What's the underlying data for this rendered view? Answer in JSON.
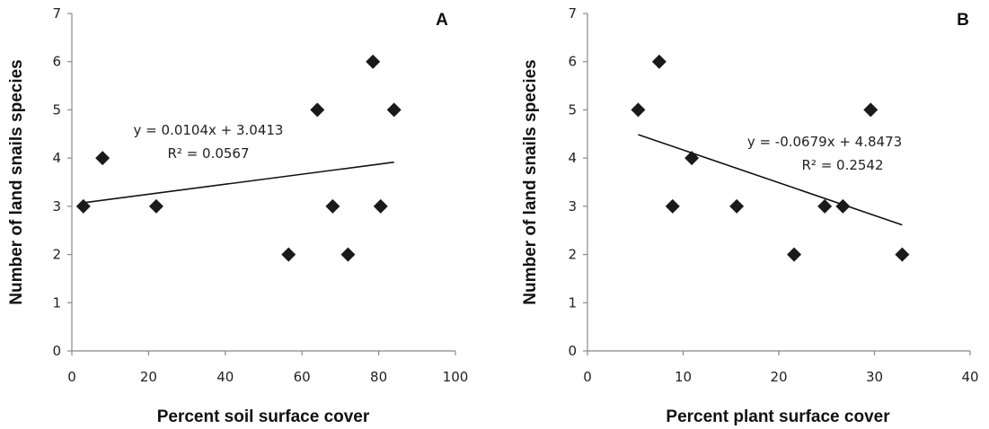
{
  "chart_data": [
    {
      "type": "scatter",
      "panel_label": "A",
      "xlabel": "Percent soil surface cover",
      "ylabel": "Number of land snails species",
      "xlim": [
        0,
        100
      ],
      "ylim": [
        0,
        7
      ],
      "xticks": [
        "0",
        "20",
        "40",
        "60",
        "80",
        "100"
      ],
      "yticks": [
        "0",
        "1",
        "2",
        "3",
        "4",
        "5",
        "6",
        "7"
      ],
      "marker_color": "#1a1a1a",
      "points": [
        {
          "x": 3,
          "y": 3
        },
        {
          "x": 8,
          "y": 4
        },
        {
          "x": 22,
          "y": 3
        },
        {
          "x": 56.5,
          "y": 2
        },
        {
          "x": 64,
          "y": 5
        },
        {
          "x": 68,
          "y": 3
        },
        {
          "x": 72,
          "y": 2
        },
        {
          "x": 78.5,
          "y": 6
        },
        {
          "x": 80.5,
          "y": 3
        },
        {
          "x": 84,
          "y": 5
        }
      ],
      "trendline": {
        "equation": "y = 0.0104x + 3.0413",
        "r2_text": "R² = 0.0567",
        "slope": 0.0104,
        "intercept": 3.0413,
        "x_range": [
          3,
          84
        ]
      }
    },
    {
      "type": "scatter",
      "panel_label": "B",
      "xlabel": "Percent plant surface cover",
      "ylabel": "Number of land snails species",
      "xlim": [
        0,
        40
      ],
      "ylim": [
        0,
        7
      ],
      "xticks": [
        "0",
        "10",
        "20",
        "30",
        "40"
      ],
      "yticks": [
        "0",
        "1",
        "2",
        "3",
        "4",
        "5",
        "6",
        "7"
      ],
      "marker_color": "#1a1a1a",
      "points": [
        {
          "x": 5.3,
          "y": 5
        },
        {
          "x": 7.5,
          "y": 6
        },
        {
          "x": 8.9,
          "y": 3
        },
        {
          "x": 10.9,
          "y": 4
        },
        {
          "x": 15.6,
          "y": 3
        },
        {
          "x": 21.6,
          "y": 2
        },
        {
          "x": 24.8,
          "y": 3
        },
        {
          "x": 26.7,
          "y": 3
        },
        {
          "x": 29.6,
          "y": 5
        },
        {
          "x": 32.9,
          "y": 2
        }
      ],
      "trendline": {
        "equation": "y = -0.0679x + 4.8473",
        "r2_text": "R² = 0.2542",
        "slope": -0.0679,
        "intercept": 4.8473,
        "x_range": [
          5.3,
          32.9
        ]
      }
    }
  ]
}
